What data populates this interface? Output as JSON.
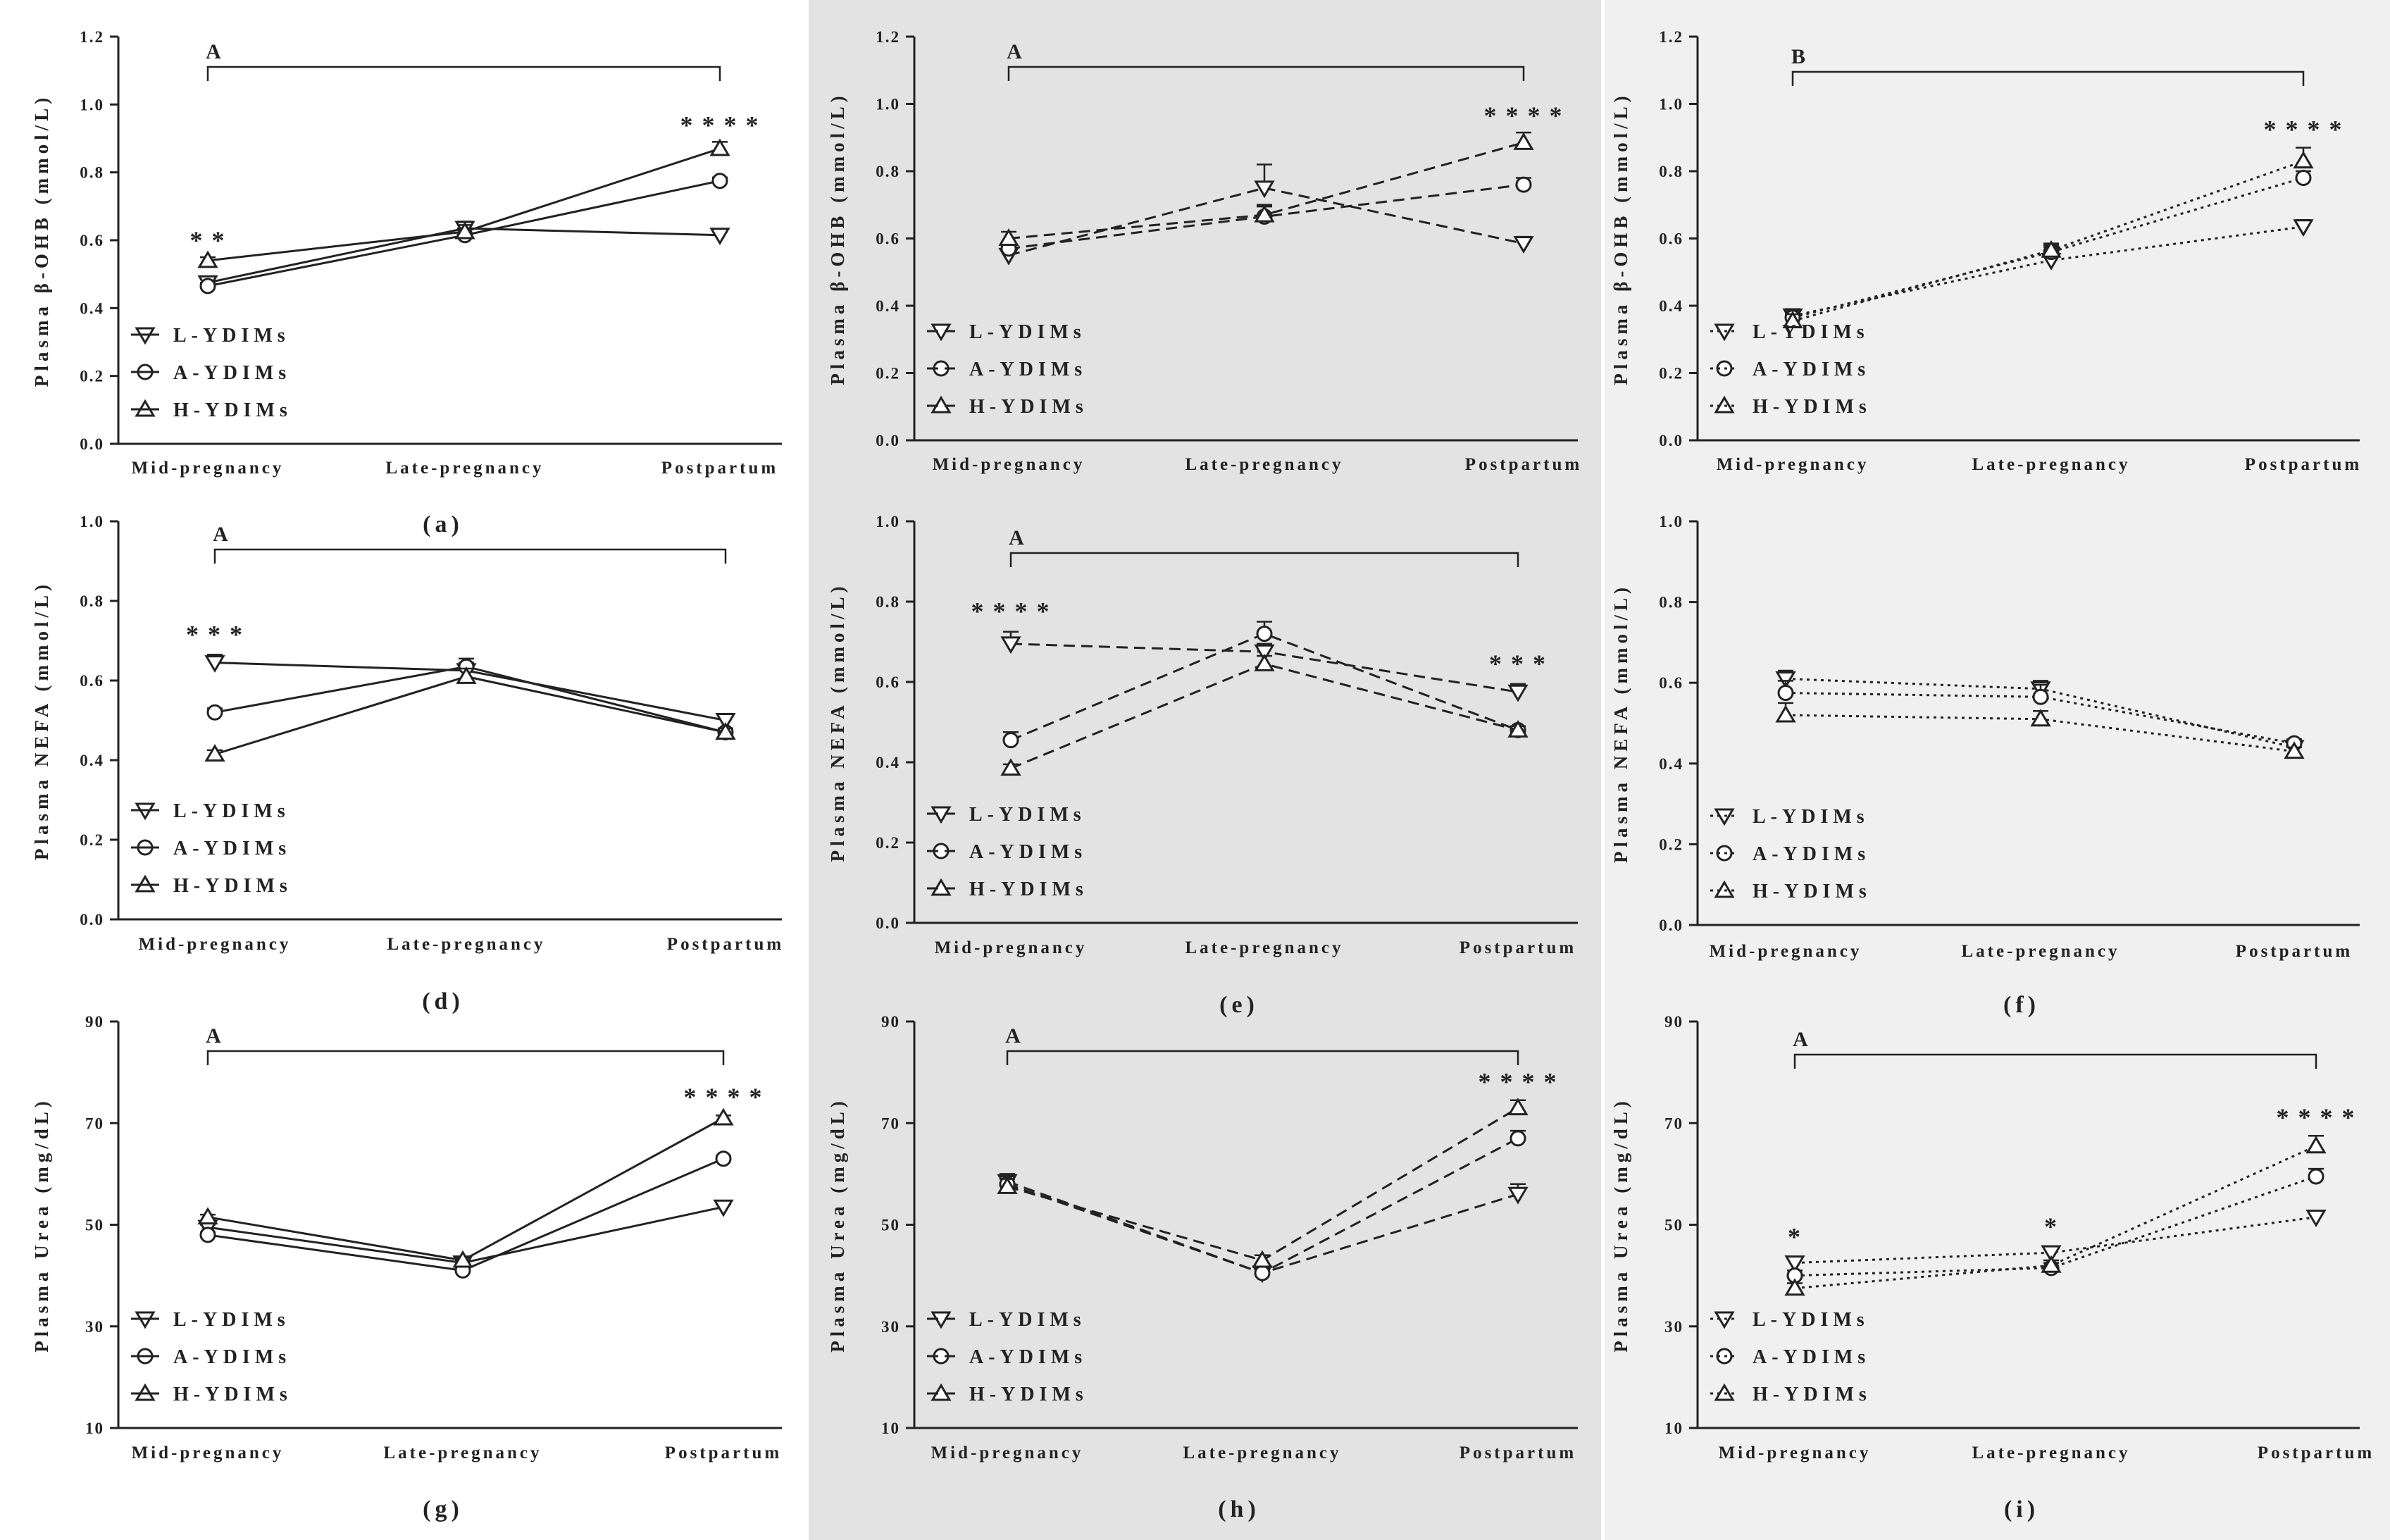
{
  "figure": {
    "chart_data": [
      {
        "id": "a",
        "type": "line",
        "panel_label": "(a)",
        "ylabel": "Plasma β-OHB (mmol/L)",
        "yticks": [
          "0.0",
          "0.2",
          "0.4",
          "0.6",
          "0.8",
          "1.0",
          "1.2"
        ],
        "ylim": [
          0,
          1.2
        ],
        "categories": [
          "Mid-pregnancy",
          "Late-pregnancy",
          "Postpartum"
        ],
        "line_style": "solid",
        "background": "#ffffff",
        "bracket": {
          "label": "A"
        },
        "annotations": [
          {
            "x": 0,
            "text": "* *",
            "y": 0.575
          },
          {
            "x": 2,
            "text": "* * * *",
            "y": 0.915
          }
        ],
        "series": [
          {
            "name": "L-YDIMs",
            "marker": "tri-down",
            "values": [
              0.475,
              0.635,
              0.615
            ],
            "errors": [
              0.01,
              0.02,
              0.01
            ]
          },
          {
            "name": "A-YDIMs",
            "marker": "circle",
            "values": [
              0.465,
              0.615,
              0.775
            ],
            "errors": [
              0.01,
              0.02,
              0.01
            ]
          },
          {
            "name": "H-YDIMs",
            "marker": "tri-up",
            "values": [
              0.54,
              0.625,
              0.87
            ],
            "errors": [
              0.01,
              0.02,
              0.02
            ]
          }
        ]
      },
      {
        "id": "b",
        "type": "line",
        "panel_label": "(b)",
        "ylabel": "Plasma β-OHB (mmol/L)",
        "yticks": [
          "0.0",
          "0.2",
          "0.4",
          "0.6",
          "0.8",
          "1.0",
          "1.2"
        ],
        "ylim": [
          0,
          1.2
        ],
        "categories": [
          "Mid-pregnancy",
          "Late-pregnancy",
          "Postpartum"
        ],
        "line_style": "dashed",
        "background": "#e3e3e3",
        "bracket": {
          "label": "A"
        },
        "annotations": [
          {
            "x": 2,
            "text": "* * * *",
            "y": 0.94
          }
        ],
        "series": [
          {
            "name": "L-YDIMs",
            "marker": "tri-down",
            "values": [
              0.55,
              0.75,
              0.585
            ],
            "errors": [
              0.03,
              0.07,
              0.02
            ]
          },
          {
            "name": "A-YDIMs",
            "marker": "circle",
            "values": [
              0.57,
              0.665,
              0.76
            ],
            "errors": [
              0.02,
              0.03,
              0.02
            ]
          },
          {
            "name": "H-YDIMs",
            "marker": "tri-up",
            "values": [
              0.6,
              0.67,
              0.885
            ],
            "errors": [
              0.02,
              0.03,
              0.03
            ]
          }
        ]
      },
      {
        "id": "c",
        "type": "line",
        "panel_label": "(c)",
        "ylabel": "Plasma β-OHB (mmol/L)",
        "yticks": [
          "0.0",
          "0.2",
          "0.4",
          "0.6",
          "0.8",
          "1.0",
          "1.2"
        ],
        "ylim": [
          0,
          1.2
        ],
        "categories": [
          "Mid-pregnancy",
          "Late-pregnancy",
          "Postpartum"
        ],
        "line_style": "dotted",
        "background": "#f0f0f0",
        "bracket": {
          "label": "B"
        },
        "annotations": [
          {
            "x": 2,
            "text": "* * * *",
            "y": 0.9
          }
        ],
        "series": [
          {
            "name": "L-YDIMs",
            "marker": "tri-down",
            "values": [
              0.37,
              0.535,
              0.635
            ],
            "errors": [
              0.02,
              0.04,
              0.02
            ]
          },
          {
            "name": "A-YDIMs",
            "marker": "circle",
            "values": [
              0.365,
              0.56,
              0.78
            ],
            "errors": [
              0.02,
              0.02,
              0.02
            ]
          },
          {
            "name": "H-YDIMs",
            "marker": "tri-up",
            "values": [
              0.355,
              0.565,
              0.83
            ],
            "errors": [
              0.02,
              0.02,
              0.04
            ]
          }
        ]
      },
      {
        "id": "d",
        "type": "line",
        "panel_label": "(d)",
        "ylabel": "Plasma NEFA (mmol/L)",
        "yticks": [
          "0.0",
          "0.2",
          "0.4",
          "0.6",
          "0.8",
          "1.0"
        ],
        "ylim": [
          0,
          1.0
        ],
        "categories": [
          "Mid-pregnancy",
          "Late-pregnancy",
          "Postpartum"
        ],
        "line_style": "solid",
        "background": "#ffffff",
        "bracket": {
          "label": "A"
        },
        "annotations": [
          {
            "x": 0,
            "text": "* * *",
            "y": 0.695
          }
        ],
        "series": [
          {
            "name": "L-YDIMs",
            "marker": "tri-down",
            "values": [
              0.645,
              0.625,
              0.5
            ],
            "errors": [
              0.02,
              0.02,
              0.01
            ]
          },
          {
            "name": "A-YDIMs",
            "marker": "circle",
            "values": [
              0.52,
              0.635,
              0.47
            ],
            "errors": [
              0.01,
              0.02,
              0.01
            ]
          },
          {
            "name": "H-YDIMs",
            "marker": "tri-up",
            "values": [
              0.415,
              0.61,
              0.47
            ],
            "errors": [
              0.01,
              0.02,
              0.01
            ]
          }
        ]
      },
      {
        "id": "e",
        "type": "line",
        "panel_label": "(e)",
        "ylabel": "Plasma NEFA (mmol/L)",
        "yticks": [
          "0.0",
          "0.2",
          "0.4",
          "0.6",
          "0.8",
          "1.0"
        ],
        "ylim": [
          0,
          1.0
        ],
        "categories": [
          "Mid-pregnancy",
          "Late-pregnancy",
          "Postpartum"
        ],
        "line_style": "dashed",
        "background": "#e3e3e3",
        "bracket": {
          "label": "A"
        },
        "annotations": [
          {
            "x": 0,
            "text": "* * * *",
            "y": 0.755
          },
          {
            "x": 2,
            "text": "* * *",
            "y": 0.625
          }
        ],
        "series": [
          {
            "name": "L-YDIMs",
            "marker": "tri-down",
            "values": [
              0.695,
              0.675,
              0.575
            ],
            "errors": [
              0.03,
              0.02,
              0.02
            ]
          },
          {
            "name": "A-YDIMs",
            "marker": "circle",
            "values": [
              0.455,
              0.72,
              0.48
            ],
            "errors": [
              0.02,
              0.03,
              0.01
            ]
          },
          {
            "name": "H-YDIMs",
            "marker": "tri-up",
            "values": [
              0.385,
              0.645,
              0.48
            ],
            "errors": [
              0.01,
              0.02,
              0.01
            ]
          }
        ]
      },
      {
        "id": "f",
        "type": "line",
        "panel_label": "(f)",
        "ylabel": "Plasma NEFA (mmol/L)",
        "yticks": [
          "0.0",
          "0.2",
          "0.4",
          "0.6",
          "0.8",
          "1.0"
        ],
        "ylim": [
          0,
          1.0
        ],
        "categories": [
          "Mid-pregnancy",
          "Late-pregnancy",
          "Postpartum"
        ],
        "line_style": "dotted",
        "background": "#f0f0f0",
        "bracket": null,
        "annotations": [],
        "series": [
          {
            "name": "L-YDIMs",
            "marker": "tri-down",
            "values": [
              0.61,
              0.585,
              0.44
            ],
            "errors": [
              0.02,
              0.02,
              0.01
            ]
          },
          {
            "name": "A-YDIMs",
            "marker": "circle",
            "values": [
              0.575,
              0.565,
              0.45
            ],
            "errors": [
              0.03,
              0.03,
              0.01
            ]
          },
          {
            "name": "H-YDIMs",
            "marker": "tri-up",
            "values": [
              0.52,
              0.51,
              0.43
            ],
            "errors": [
              0.03,
              0.02,
              0.01
            ]
          }
        ]
      },
      {
        "id": "g",
        "type": "line",
        "panel_label": "(g)",
        "ylabel": "Plasma Urea (mg/dL)",
        "yticks": [
          "10",
          "30",
          "50",
          "70",
          "90"
        ],
        "ylim": [
          10,
          90
        ],
        "categories": [
          "Mid-pregnancy",
          "Late-pregnancy",
          "Postpartum"
        ],
        "line_style": "solid",
        "background": "#ffffff",
        "bracket": {
          "label": "A"
        },
        "annotations": [
          {
            "x": 2,
            "text": "* * * *",
            "y": 73.5
          }
        ],
        "series": [
          {
            "name": "L-YDIMs",
            "marker": "tri-down",
            "values": [
              49.5,
              42.5,
              53.5
            ],
            "errors": [
              0.5,
              0.5,
              0.5
            ]
          },
          {
            "name": "A-YDIMs",
            "marker": "circle",
            "values": [
              48,
              41,
              63
            ],
            "errors": [
              0.5,
              0.5,
              0.5
            ]
          },
          {
            "name": "H-YDIMs",
            "marker": "tri-up",
            "values": [
              51.5,
              43,
              71
            ],
            "errors": [
              0.5,
              0.5,
              0.5
            ]
          }
        ]
      },
      {
        "id": "h",
        "type": "line",
        "panel_label": "(h)",
        "ylabel": "Plasma Urea (mg/dL)",
        "yticks": [
          "10",
          "30",
          "50",
          "70",
          "90"
        ],
        "ylim": [
          10,
          90
        ],
        "categories": [
          "Mid-pregnancy",
          "Late-pregnancy",
          "Postpartum"
        ],
        "line_style": "dashed",
        "background": "#e3e3e3",
        "bracket": {
          "label": "A"
        },
        "annotations": [
          {
            "x": 2,
            "text": "* * * *",
            "y": 76.5
          }
        ],
        "series": [
          {
            "name": "L-YDIMs",
            "marker": "tri-down",
            "values": [
              58.5,
              40.5,
              56
            ],
            "errors": [
              1.5,
              1,
              2
            ]
          },
          {
            "name": "A-YDIMs",
            "marker": "circle",
            "values": [
              58,
              40.5,
              67
            ],
            "errors": [
              1.5,
              1,
              1.5
            ]
          },
          {
            "name": "H-YDIMs",
            "marker": "tri-up",
            "values": [
              57.5,
              43,
              73
            ],
            "errors": [
              1.5,
              1,
              1.5
            ]
          }
        ]
      },
      {
        "id": "i",
        "type": "line",
        "panel_label": "(i)",
        "ylabel": "Plasma Urea (mg/dL)",
        "yticks": [
          "10",
          "30",
          "50",
          "70",
          "90"
        ],
        "ylim": [
          10,
          90
        ],
        "categories": [
          "Mid-pregnancy",
          "Late-pregnancy",
          "Postpartum"
        ],
        "line_style": "dotted",
        "background": "#f0f0f0",
        "bracket": {
          "label": "A"
        },
        "annotations": [
          {
            "x": 0,
            "text": "*",
            "y": 46
          },
          {
            "x": 1,
            "text": "*",
            "y": 48
          },
          {
            "x": 2,
            "text": "* * * *",
            "y": 69.5
          }
        ],
        "series": [
          {
            "name": "L-YDIMs",
            "marker": "tri-down",
            "values": [
              42.5,
              44.5,
              51.5
            ],
            "errors": [
              1,
              1,
              1
            ]
          },
          {
            "name": "A-YDIMs",
            "marker": "circle",
            "values": [
              40,
              41.5,
              59.5
            ],
            "errors": [
              1,
              1,
              1.5
            ]
          },
          {
            "name": "H-YDIMs",
            "marker": "tri-up",
            "values": [
              37.5,
              42,
              65.5
            ],
            "errors": [
              1,
              1,
              2
            ]
          }
        ]
      }
    ]
  }
}
